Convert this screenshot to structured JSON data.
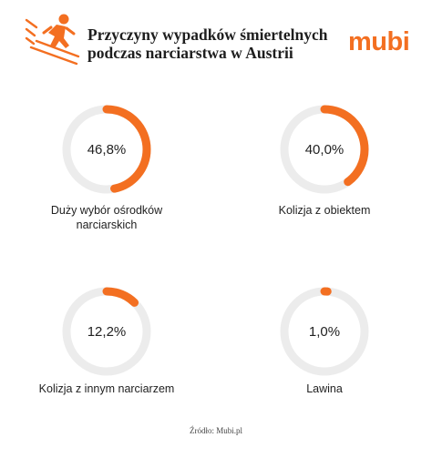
{
  "header": {
    "title_line1": "Przyczyny wypadków śmiertelnych",
    "title_line2": "podczas narciarstwa w Austrii",
    "brand": "mubi"
  },
  "colors": {
    "accent": "#f36f21",
    "track": "#ececec",
    "text": "#222222"
  },
  "chart_data": {
    "type": "pie",
    "subtype": "donut-grid",
    "title": "Przyczyny wypadków śmiertelnych podczas narciarstwa w Austrii",
    "items": [
      {
        "value": 46.8,
        "value_label": "46,8%",
        "label_line1": "Duży wybór ośrodków",
        "label_line2": "narciarskich"
      },
      {
        "value": 40.0,
        "value_label": "40,0%",
        "label_line1": "Kolizja z obiektem",
        "label_line2": ""
      },
      {
        "value": 12.2,
        "value_label": "12,2%",
        "label_line1": "Kolizja z innym narciarzem",
        "label_line2": ""
      },
      {
        "value": 1.0,
        "value_label": "1,0%",
        "label_line1": "Lawina",
        "label_line2": ""
      }
    ]
  },
  "footer": {
    "source": "Źródło: Mubi.pl"
  }
}
